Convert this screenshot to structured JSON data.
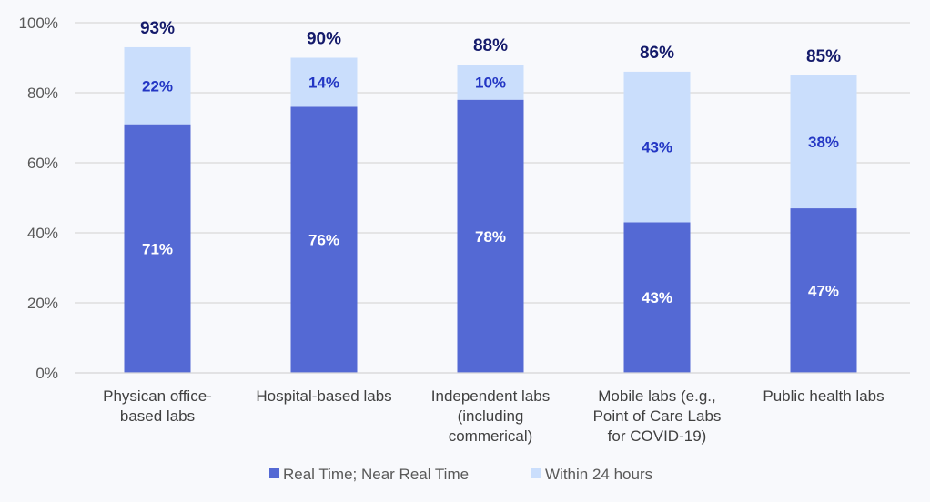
{
  "chart_data": {
    "type": "bar",
    "stacked": true,
    "categories": [
      [
        "Physican office-",
        "based labs"
      ],
      [
        "Hospital-based labs"
      ],
      [
        "Independent labs",
        "(including",
        "commerical)"
      ],
      [
        "Mobile labs (e.g.,",
        "Point of Care Labs",
        "for COVID-19)"
      ],
      [
        "Public health labs"
      ]
    ],
    "series": [
      {
        "name": "Real Time; Near Real Time",
        "values": [
          71,
          76,
          78,
          43,
          47
        ],
        "labels": [
          "71%",
          "76%",
          "78%",
          "43%",
          "47%"
        ],
        "color": "#5469d4",
        "label_color": "#ffffff"
      },
      {
        "name": "Within 24 hours",
        "values": [
          22,
          14,
          10,
          43,
          38
        ],
        "labels": [
          "22%",
          "14%",
          "10%",
          "43%",
          "38%"
        ],
        "color": "#cadefc",
        "label_color": "#2336c4"
      }
    ],
    "totals": [
      "93%",
      "90%",
      "88%",
      "86%",
      "85%"
    ],
    "total_values": [
      93,
      90,
      88,
      86,
      85
    ],
    "yticks": [
      "0%",
      "20%",
      "40%",
      "60%",
      "80%",
      "100%"
    ],
    "ylim": [
      0,
      100
    ],
    "grid": true,
    "legend_placement": "bottom",
    "title": "",
    "xlabel": "",
    "ylabel": ""
  }
}
